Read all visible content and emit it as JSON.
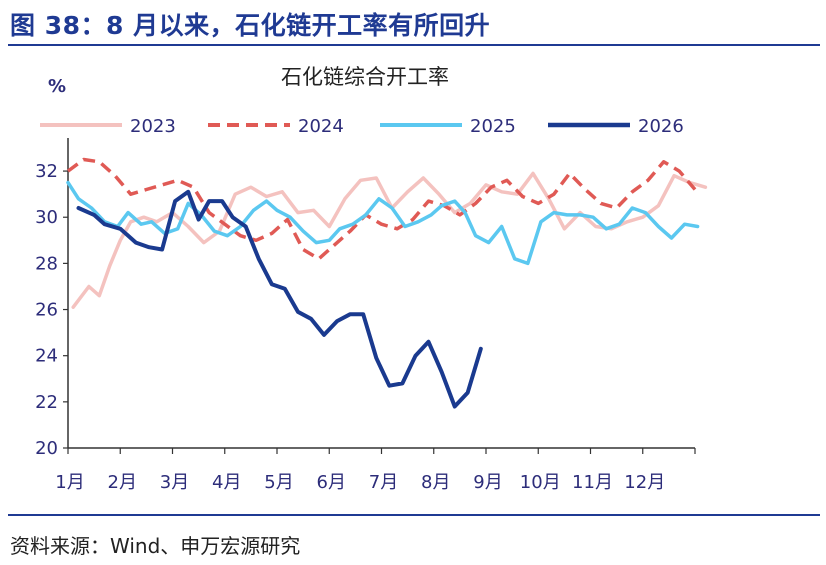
{
  "figure_title": "图 38：8 月以来，石化链开工率有所回升",
  "source_note": "资料来源：Wind、申万宏源研究",
  "chart_data": {
    "type": "line",
    "title": "石化链综合开工率",
    "unit_label": "%",
    "ylim": [
      20,
      33
    ],
    "yticks": [
      20,
      22,
      24,
      26,
      28,
      30,
      32
    ],
    "xlim": [
      0,
      12
    ],
    "xticks": [
      "1月",
      "2月",
      "3月",
      "4月",
      "5月",
      "6月",
      "7月",
      "8月",
      "9月",
      "10月",
      "11月",
      "12月"
    ],
    "legend_position": "top",
    "grid": false,
    "series": [
      {
        "name": "2023",
        "color": "#f4c2bf",
        "dash": "solid",
        "x": [
          0.1,
          0.4,
          0.6,
          0.8,
          1.0,
          1.2,
          1.45,
          1.7,
          2.0,
          2.3,
          2.6,
          2.9,
          3.2,
          3.5,
          3.8,
          4.1,
          4.4,
          4.7,
          5.0,
          5.3,
          5.6,
          5.9,
          6.2,
          6.5,
          6.8,
          7.1,
          7.4,
          7.7,
          8.0,
          8.3,
          8.6,
          8.9,
          9.2,
          9.5,
          9.8,
          10.1,
          10.4,
          10.7,
          11.0,
          11.3,
          11.6,
          11.9,
          12.2
        ],
        "y": [
          26.1,
          27.0,
          26.6,
          27.9,
          29.0,
          29.8,
          30.0,
          29.8,
          30.2,
          29.6,
          28.9,
          29.4,
          31.0,
          31.3,
          30.9,
          31.1,
          30.2,
          30.3,
          29.6,
          30.8,
          31.6,
          31.7,
          30.4,
          31.1,
          31.7,
          31.0,
          30.2,
          30.6,
          31.4,
          31.1,
          31.0,
          31.9,
          30.8,
          29.5,
          30.2,
          29.6,
          29.5,
          29.8,
          30.0,
          30.5,
          31.8,
          31.5,
          31.3
        ]
      },
      {
        "name": "2024",
        "color": "#e05a55",
        "dash": "dashed",
        "x": [
          0.0,
          0.3,
          0.6,
          0.9,
          1.2,
          1.5,
          1.8,
          2.1,
          2.4,
          2.7,
          3.0,
          3.3,
          3.6,
          3.9,
          4.2,
          4.5,
          4.8,
          5.1,
          5.4,
          5.7,
          6.0,
          6.3,
          6.6,
          6.9,
          7.2,
          7.5,
          7.8,
          8.1,
          8.4,
          8.7,
          9.0,
          9.3,
          9.6,
          9.9,
          10.2,
          10.5,
          10.8,
          11.1,
          11.4,
          11.7,
          12.0
        ],
        "y": [
          32.0,
          32.5,
          32.4,
          31.8,
          31.0,
          31.2,
          31.4,
          31.6,
          31.3,
          30.2,
          29.7,
          29.2,
          29.0,
          29.3,
          29.9,
          28.6,
          28.2,
          28.8,
          29.4,
          30.1,
          29.7,
          29.5,
          29.9,
          30.7,
          30.5,
          30.1,
          30.6,
          31.3,
          31.6,
          30.9,
          30.6,
          31.0,
          31.9,
          31.2,
          30.6,
          30.4,
          31.1,
          31.6,
          32.4,
          32.0,
          31.2
        ]
      },
      {
        "name": "2025",
        "color": "#5bc8f0",
        "dash": "solid",
        "x": [
          0.0,
          0.2,
          0.45,
          0.7,
          0.95,
          1.15,
          1.4,
          1.6,
          1.85,
          2.1,
          2.3,
          2.55,
          2.8,
          3.05,
          3.3,
          3.55,
          3.8,
          4.0,
          4.25,
          4.5,
          4.75,
          5.0,
          5.2,
          5.45,
          5.7,
          5.95,
          6.2,
          6.45,
          6.7,
          6.95,
          7.15,
          7.4,
          7.6,
          7.8,
          8.05,
          8.3,
          8.55,
          8.8,
          9.05,
          9.3,
          9.55,
          9.8,
          10.05,
          10.3,
          10.55,
          10.8,
          11.05,
          11.3,
          11.55,
          11.8,
          12.05
        ],
        "y": [
          31.5,
          30.8,
          30.4,
          29.8,
          29.6,
          30.2,
          29.7,
          29.8,
          29.3,
          29.5,
          30.6,
          30.1,
          29.4,
          29.2,
          29.6,
          30.3,
          30.7,
          30.3,
          30.0,
          29.4,
          28.9,
          29.0,
          29.5,
          29.7,
          30.1,
          30.8,
          30.4,
          29.6,
          29.8,
          30.1,
          30.5,
          30.7,
          30.2,
          29.2,
          28.9,
          29.6,
          28.2,
          28.0,
          29.8,
          30.2,
          30.1,
          30.1,
          30.0,
          29.5,
          29.7,
          30.4,
          30.2,
          29.6,
          29.1,
          29.7,
          29.6
        ]
      },
      {
        "name": "2026",
        "color": "#1a3a8f",
        "dash": "solid",
        "x": [
          0.2,
          0.5,
          0.7,
          1.0,
          1.3,
          1.55,
          1.8,
          2.05,
          2.3,
          2.5,
          2.7,
          2.95,
          3.15,
          3.4,
          3.65,
          3.9,
          4.15,
          4.4,
          4.65,
          4.9,
          5.15,
          5.4,
          5.65,
          5.9,
          6.15,
          6.4,
          6.65,
          6.9,
          7.15,
          7.4,
          7.65,
          7.9
        ],
        "y": [
          30.4,
          30.1,
          29.7,
          29.5,
          28.9,
          28.7,
          28.6,
          30.7,
          31.1,
          29.9,
          30.7,
          30.7,
          30.0,
          29.6,
          28.2,
          27.1,
          26.9,
          25.9,
          25.6,
          24.9,
          25.5,
          25.8,
          25.8,
          23.9,
          22.7,
          22.8,
          24.0,
          24.6,
          23.3,
          21.8,
          22.4,
          24.3
        ]
      }
    ]
  }
}
